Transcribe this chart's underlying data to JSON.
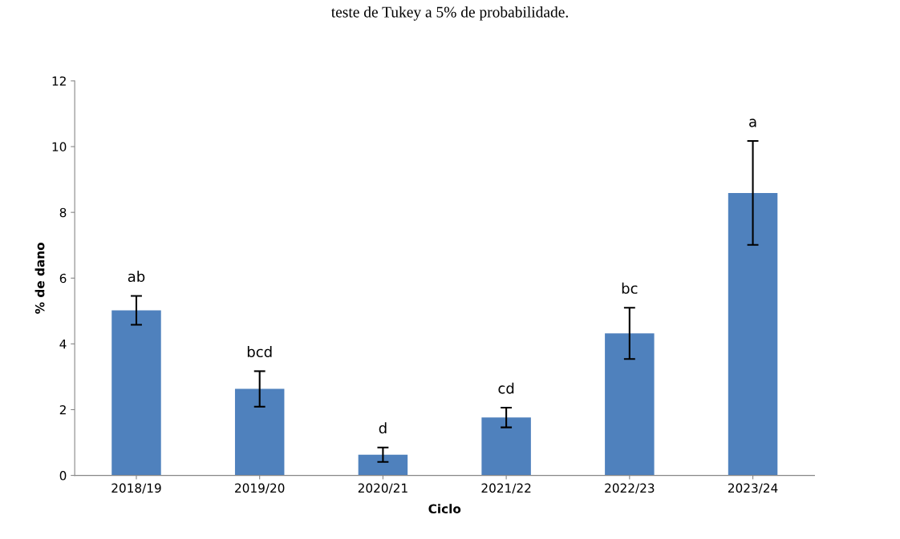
{
  "chart_data": {
    "type": "bar",
    "xlabel": "Ciclo",
    "ylabel": "% de dano",
    "categories": [
      "2018/19",
      "2019/20",
      "2020/21",
      "2021/22",
      "2022/23",
      "2023/24"
    ],
    "values": [
      5.02,
      2.63,
      0.63,
      1.76,
      4.32,
      8.59
    ],
    "errors": [
      0.44,
      0.54,
      0.22,
      0.3,
      0.78,
      1.58
    ],
    "color": "#4f81bd",
    "ylim": [
      0,
      12
    ],
    "yticks": [
      0,
      2,
      4,
      6,
      8,
      10,
      12
    ],
    "grid": false,
    "annotations": [
      {
        "text": "ab",
        "x": "2018/19",
        "y": 5.46
      },
      {
        "text": "bcd",
        "x": "2019/20",
        "y": 3.17
      },
      {
        "text": "d",
        "x": "2020/21",
        "y": 0.85
      },
      {
        "text": "cd",
        "x": "2021/22",
        "y": 2.06
      },
      {
        "text": "bc",
        "x": "2022/23",
        "y": 5.1
      },
      {
        "text": "a",
        "x": "2023/24",
        "y": 10.17
      },
      "teste de Tukey a 5% de probabilidade."
    ]
  }
}
